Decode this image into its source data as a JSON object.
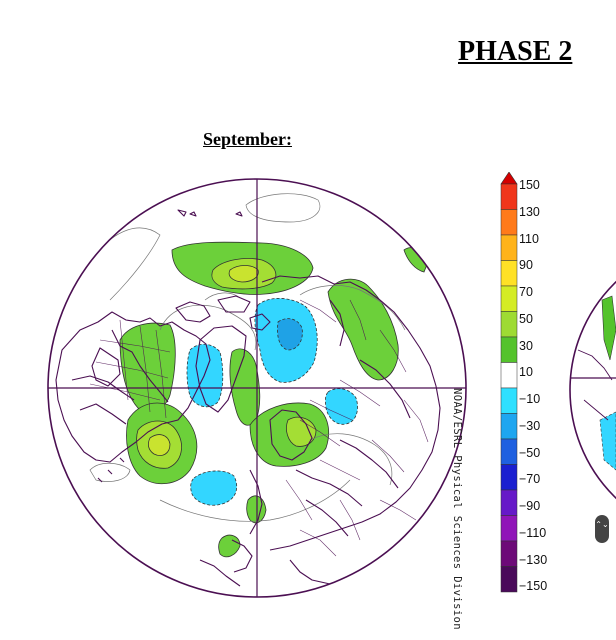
{
  "page": {
    "title": "PHASE 2",
    "subtitle": "September:"
  },
  "map": {
    "projection": "north-polar-stereographic",
    "credit": "NOAA/ESRL Physical Sciences Division",
    "positive_fill_color": "#6cd03a",
    "positive_inner_color": "#a4de34",
    "positive_core_color": "#c9e32f",
    "negative_fill_color": "#33d6ff",
    "negative_inner_color": "#1fa2e6",
    "coastline_color": "#4b0f52"
  },
  "colorbar": {
    "labels": [
      "150",
      "130",
      "110",
      "90",
      "70",
      "50",
      "30",
      "10",
      "−10",
      "−30",
      "−50",
      "−70",
      "−90",
      "−110",
      "−130",
      "−150"
    ],
    "colors": [
      "#d40000",
      "#f0361b",
      "#ff7a1a",
      "#ffb31a",
      "#ffe126",
      "#d4ec25",
      "#9edb33",
      "#54c32c",
      "#ffffff",
      "#2fe0ff",
      "#1ea6f0",
      "#1e60e0",
      "#1a1fd0",
      "#6619c8",
      "#9015b8",
      "#6d0a78",
      "#4a0a5a"
    ]
  },
  "controls": {
    "scroll_icon": "⌃⌄"
  }
}
